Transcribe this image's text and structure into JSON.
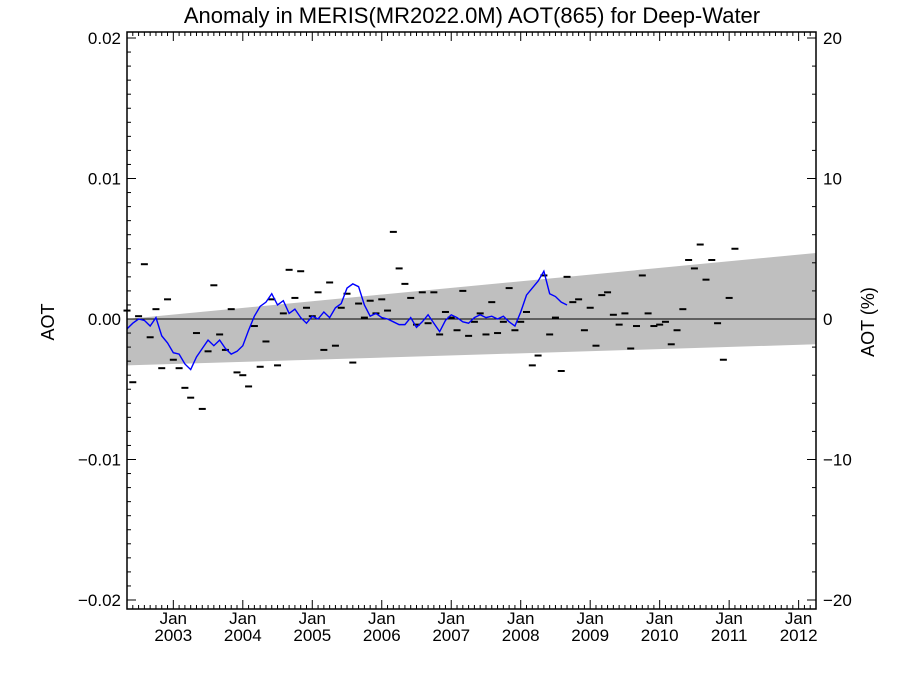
{
  "chart_data": {
    "type": "line",
    "title": "Anomaly in MERIS(MR2022.0M) AOT(865) for Deep-Water",
    "ylabel_left": "AOT",
    "ylabel_right": "AOT (%)",
    "ylim": [
      -0.02,
      0.02
    ],
    "ylim_right": [
      -20,
      20
    ],
    "y_ticks_left": [
      "0.02",
      "0.01",
      "0.00",
      "−0.01",
      "−0.02"
    ],
    "y_ticks_right": [
      "20",
      "10",
      "0",
      "−10",
      "−20"
    ],
    "x_ticks": [
      {
        "month": "Jan",
        "year": "2003"
      },
      {
        "month": "Jan",
        "year": "2004"
      },
      {
        "month": "Jan",
        "year": "2005"
      },
      {
        "month": "Jan",
        "year": "2006"
      },
      {
        "month": "Jan",
        "year": "2007"
      },
      {
        "month": "Jan",
        "year": "2008"
      },
      {
        "month": "Jan",
        "year": "2009"
      },
      {
        "month": "Jan",
        "year": "2010"
      },
      {
        "month": "Jan",
        "year": "2011"
      },
      {
        "month": "Jan",
        "year": "2012"
      }
    ],
    "xlim": [
      "2002-05",
      "2012-04"
    ],
    "grid": false,
    "zero_line": true,
    "colors": {
      "smoothed": "#0000ff",
      "monthly": "#000000",
      "band": "#bfbfbf"
    },
    "uncertainty_band": {
      "lower": [
        {
          "date": "2002-05",
          "y": -0.0033
        },
        {
          "date": "2012-04",
          "y": -0.0018
        }
      ],
      "upper": [
        {
          "date": "2002-05",
          "y": 0.0
        },
        {
          "date": "2012-04",
          "y": 0.0047
        }
      ]
    },
    "series": [
      {
        "style": "dash-markers",
        "points": [
          {
            "date": "2002-05",
            "y": 0.0006
          },
          {
            "date": "2002-06",
            "y": -0.0045
          },
          {
            "date": "2002-07",
            "y": 0.0002
          },
          {
            "date": "2002-08",
            "y": 0.0039
          },
          {
            "date": "2002-09",
            "y": -0.0013
          },
          {
            "date": "2002-10",
            "y": 0.0007
          },
          {
            "date": "2002-11",
            "y": -0.0035
          },
          {
            "date": "2002-12",
            "y": 0.0014
          },
          {
            "date": "2003-01",
            "y": -0.0029
          },
          {
            "date": "2003-02",
            "y": -0.0035
          },
          {
            "date": "2003-03",
            "y": -0.0049
          },
          {
            "date": "2003-04",
            "y": -0.0056
          },
          {
            "date": "2003-05",
            "y": -0.001
          },
          {
            "date": "2003-06",
            "y": -0.0064
          },
          {
            "date": "2003-07",
            "y": -0.0023
          },
          {
            "date": "2003-08",
            "y": 0.0024
          },
          {
            "date": "2003-09",
            "y": -0.0011
          },
          {
            "date": "2003-10",
            "y": -0.0022
          },
          {
            "date": "2003-11",
            "y": 0.0007
          },
          {
            "date": "2003-12",
            "y": -0.0038
          },
          {
            "date": "2004-01",
            "y": -0.004
          },
          {
            "date": "2004-02",
            "y": -0.0048
          },
          {
            "date": "2004-03",
            "y": -0.0005
          },
          {
            "date": "2004-04",
            "y": -0.0034
          },
          {
            "date": "2004-05",
            "y": -0.0016
          },
          {
            "date": "2004-06",
            "y": 0.0014
          },
          {
            "date": "2004-07",
            "y": -0.0033
          },
          {
            "date": "2004-08",
            "y": 0.0004
          },
          {
            "date": "2004-09",
            "y": 0.0035
          },
          {
            "date": "2004-10",
            "y": 0.0015
          },
          {
            "date": "2004-11",
            "y": 0.0034
          },
          {
            "date": "2004-12",
            "y": 0.0008
          },
          {
            "date": "2005-01",
            "y": 0.0002
          },
          {
            "date": "2005-02",
            "y": 0.0019
          },
          {
            "date": "2005-03",
            "y": -0.0022
          },
          {
            "date": "2005-04",
            "y": 0.0026
          },
          {
            "date": "2005-05",
            "y": -0.0019
          },
          {
            "date": "2005-06",
            "y": 0.0008
          },
          {
            "date": "2005-07",
            "y": 0.0018
          },
          {
            "date": "2005-08",
            "y": -0.0031
          },
          {
            "date": "2005-09",
            "y": 0.0011
          },
          {
            "date": "2005-10",
            "y": 0.0001
          },
          {
            "date": "2005-11",
            "y": 0.0013
          },
          {
            "date": "2005-12",
            "y": 0.0004
          },
          {
            "date": "2006-01",
            "y": 0.0014
          },
          {
            "date": "2006-02",
            "y": 0.0006
          },
          {
            "date": "2006-03",
            "y": 0.0062
          },
          {
            "date": "2006-04",
            "y": 0.0036
          },
          {
            "date": "2006-05",
            "y": 0.0025
          },
          {
            "date": "2006-06",
            "y": 0.0015
          },
          {
            "date": "2006-07",
            "y": -0.0004
          },
          {
            "date": "2006-08",
            "y": 0.0019
          },
          {
            "date": "2006-09",
            "y": -0.0003
          },
          {
            "date": "2006-10",
            "y": 0.0019
          },
          {
            "date": "2006-11",
            "y": -0.0011
          },
          {
            "date": "2006-12",
            "y": 0.0005
          },
          {
            "date": "2007-01",
            "y": 0.0001
          },
          {
            "date": "2007-02",
            "y": -0.0008
          },
          {
            "date": "2007-03",
            "y": 0.002
          },
          {
            "date": "2007-04",
            "y": -0.0012
          },
          {
            "date": "2007-05",
            "y": -0.0002
          },
          {
            "date": "2007-06",
            "y": 0.0004
          },
          {
            "date": "2007-07",
            "y": -0.0011
          },
          {
            "date": "2007-08",
            "y": 0.0012
          },
          {
            "date": "2007-09",
            "y": -0.001
          },
          {
            "date": "2007-10",
            "y": -0.0002
          },
          {
            "date": "2007-11",
            "y": 0.0022
          },
          {
            "date": "2007-12",
            "y": -0.0008
          },
          {
            "date": "2008-01",
            "y": -0.0002
          },
          {
            "date": "2008-02",
            "y": 0.0005
          },
          {
            "date": "2008-03",
            "y": -0.0033
          },
          {
            "date": "2008-04",
            "y": -0.0026
          },
          {
            "date": "2008-05",
            "y": 0.0031
          },
          {
            "date": "2008-06",
            "y": -0.0011
          },
          {
            "date": "2008-07",
            "y": 0.0001
          },
          {
            "date": "2008-08",
            "y": -0.0037
          },
          {
            "date": "2008-09",
            "y": 0.003
          },
          {
            "date": "2008-10",
            "y": 0.0012
          },
          {
            "date": "2008-11",
            "y": 0.0014
          },
          {
            "date": "2008-12",
            "y": -0.0008
          },
          {
            "date": "2009-01",
            "y": 0.0008
          },
          {
            "date": "2009-02",
            "y": -0.0019
          },
          {
            "date": "2009-03",
            "y": 0.0017
          },
          {
            "date": "2009-04",
            "y": 0.0019
          },
          {
            "date": "2009-05",
            "y": 0.0003
          },
          {
            "date": "2009-06",
            "y": -0.0004
          },
          {
            "date": "2009-07",
            "y": 0.0004
          },
          {
            "date": "2009-08",
            "y": -0.0021
          },
          {
            "date": "2009-09",
            "y": -0.0005
          },
          {
            "date": "2009-10",
            "y": 0.0031
          },
          {
            "date": "2009-11",
            "y": 0.0004
          },
          {
            "date": "2009-12",
            "y": -0.0005
          },
          {
            "date": "2010-01",
            "y": -0.0004
          },
          {
            "date": "2010-02",
            "y": -0.0002
          },
          {
            "date": "2010-03",
            "y": -0.0018
          },
          {
            "date": "2010-04",
            "y": -0.0008
          },
          {
            "date": "2010-05",
            "y": 0.0007
          },
          {
            "date": "2010-06",
            "y": 0.0042
          },
          {
            "date": "2010-07",
            "y": 0.0036
          },
          {
            "date": "2010-08",
            "y": 0.0053
          },
          {
            "date": "2010-09",
            "y": 0.0028
          },
          {
            "date": "2010-10",
            "y": 0.0042
          },
          {
            "date": "2010-11",
            "y": -0.0003
          },
          {
            "date": "2010-12",
            "y": -0.0029
          },
          {
            "date": "2011-01",
            "y": 0.0015
          },
          {
            "date": "2011-02",
            "y": 0.005
          }
        ]
      },
      {
        "style": "line",
        "points": [
          {
            "date": "2002-05",
            "y": -0.0007
          },
          {
            "date": "2002-06",
            "y": -0.0003
          },
          {
            "date": "2002-07",
            "y": 0.0
          },
          {
            "date": "2002-08",
            "y": -0.0001
          },
          {
            "date": "2002-09",
            "y": -0.0005
          },
          {
            "date": "2002-10",
            "y": 0.0001
          },
          {
            "date": "2002-11",
            "y": -0.0012
          },
          {
            "date": "2002-12",
            "y": -0.0017
          },
          {
            "date": "2003-01",
            "y": -0.0024
          },
          {
            "date": "2003-02",
            "y": -0.0025
          },
          {
            "date": "2003-03",
            "y": -0.0032
          },
          {
            "date": "2003-04",
            "y": -0.0036
          },
          {
            "date": "2003-05",
            "y": -0.0027
          },
          {
            "date": "2003-06",
            "y": -0.0021
          },
          {
            "date": "2003-07",
            "y": -0.0015
          },
          {
            "date": "2003-08",
            "y": -0.0019
          },
          {
            "date": "2003-09",
            "y": -0.0015
          },
          {
            "date": "2003-10",
            "y": -0.0021
          },
          {
            "date": "2003-11",
            "y": -0.0025
          },
          {
            "date": "2003-12",
            "y": -0.0023
          },
          {
            "date": "2004-01",
            "y": -0.0019
          },
          {
            "date": "2004-02",
            "y": -0.0008
          },
          {
            "date": "2004-03",
            "y": 0.0002
          },
          {
            "date": "2004-04",
            "y": 0.0009
          },
          {
            "date": "2004-05",
            "y": 0.0012
          },
          {
            "date": "2004-06",
            "y": 0.0018
          },
          {
            "date": "2004-07",
            "y": 0.001
          },
          {
            "date": "2004-08",
            "y": 0.0013
          },
          {
            "date": "2004-09",
            "y": 0.0004
          },
          {
            "date": "2004-10",
            "y": 0.0007
          },
          {
            "date": "2004-11",
            "y": 0.0001
          },
          {
            "date": "2004-12",
            "y": -0.0003
          },
          {
            "date": "2005-01",
            "y": 0.0002
          },
          {
            "date": "2005-02",
            "y": 0.0
          },
          {
            "date": "2005-03",
            "y": 0.0005
          },
          {
            "date": "2005-04",
            "y": 0.0001
          },
          {
            "date": "2005-05",
            "y": 0.0008
          },
          {
            "date": "2005-06",
            "y": 0.0011
          },
          {
            "date": "2005-07",
            "y": 0.0022
          },
          {
            "date": "2005-08",
            "y": 0.0025
          },
          {
            "date": "2005-09",
            "y": 0.0023
          },
          {
            "date": "2005-10",
            "y": 0.001
          },
          {
            "date": "2005-11",
            "y": 0.0002
          },
          {
            "date": "2005-12",
            "y": 0.0004
          },
          {
            "date": "2006-01",
            "y": 0.0001
          },
          {
            "date": "2006-02",
            "y": 0.0
          },
          {
            "date": "2006-03",
            "y": -0.0002
          },
          {
            "date": "2006-04",
            "y": -0.0004
          },
          {
            "date": "2006-05",
            "y": -0.0004
          },
          {
            "date": "2006-06",
            "y": 0.0001
          },
          {
            "date": "2006-07",
            "y": -0.0006
          },
          {
            "date": "2006-08",
            "y": -0.0002
          },
          {
            "date": "2006-09",
            "y": 0.0003
          },
          {
            "date": "2006-10",
            "y": -0.0003
          },
          {
            "date": "2006-11",
            "y": -0.0009
          },
          {
            "date": "2006-12",
            "y": -0.0001
          },
          {
            "date": "2007-01",
            "y": 0.0003
          },
          {
            "date": "2007-02",
            "y": 0.0001
          },
          {
            "date": "2007-03",
            "y": -0.0002
          },
          {
            "date": "2007-04",
            "y": -0.0003
          },
          {
            "date": "2007-05",
            "y": 0.0001
          },
          {
            "date": "2007-06",
            "y": 0.0003
          },
          {
            "date": "2007-07",
            "y": 0.0001
          },
          {
            "date": "2007-08",
            "y": 0.0002
          },
          {
            "date": "2007-09",
            "y": 0.0
          },
          {
            "date": "2007-10",
            "y": 0.0002
          },
          {
            "date": "2007-11",
            "y": -0.0002
          },
          {
            "date": "2007-12",
            "y": -0.0005
          },
          {
            "date": "2008-01",
            "y": 0.0005
          },
          {
            "date": "2008-02",
            "y": 0.0017
          },
          {
            "date": "2008-03",
            "y": 0.0022
          },
          {
            "date": "2008-04",
            "y": 0.0027
          },
          {
            "date": "2008-05",
            "y": 0.0034
          },
          {
            "date": "2008-06",
            "y": 0.0018
          },
          {
            "date": "2008-07",
            "y": 0.0016
          },
          {
            "date": "2008-08",
            "y": 0.0012
          },
          {
            "date": "2008-09",
            "y": 0.001
          }
        ]
      }
    ]
  }
}
